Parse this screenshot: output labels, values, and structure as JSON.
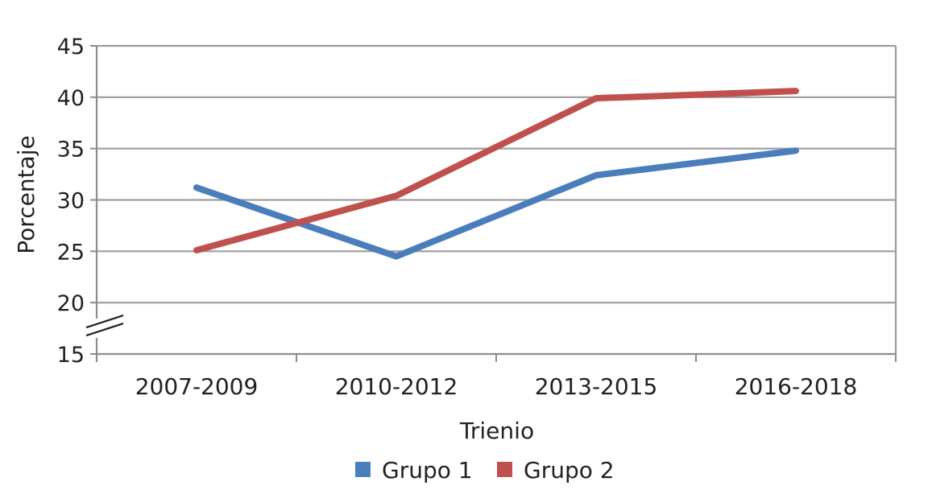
{
  "chart_data": {
    "type": "line",
    "categories": [
      "2007-2009",
      "2010-2012",
      "2013-2015",
      "2016-2018"
    ],
    "series": [
      {
        "name": "Grupo 1",
        "values": [
          31.2,
          24.5,
          32.4,
          34.8
        ],
        "color": "#4a7ebb"
      },
      {
        "name": "Grupo 2",
        "values": [
          25.1,
          30.4,
          39.9,
          40.6
        ],
        "color": "#c0504d"
      }
    ],
    "xlabel": "Trienio",
    "ylabel": "Porcentaje",
    "ylim": [
      15,
      45
    ],
    "yticks": [
      "15",
      "20",
      "25",
      "30",
      "35",
      "40",
      "45"
    ],
    "axis_break": true,
    "grid": true,
    "legend_position": "bottom",
    "colors": {
      "grid": "#9d9d9d",
      "axis": "#8c8c8c",
      "text": "#231f20"
    }
  }
}
